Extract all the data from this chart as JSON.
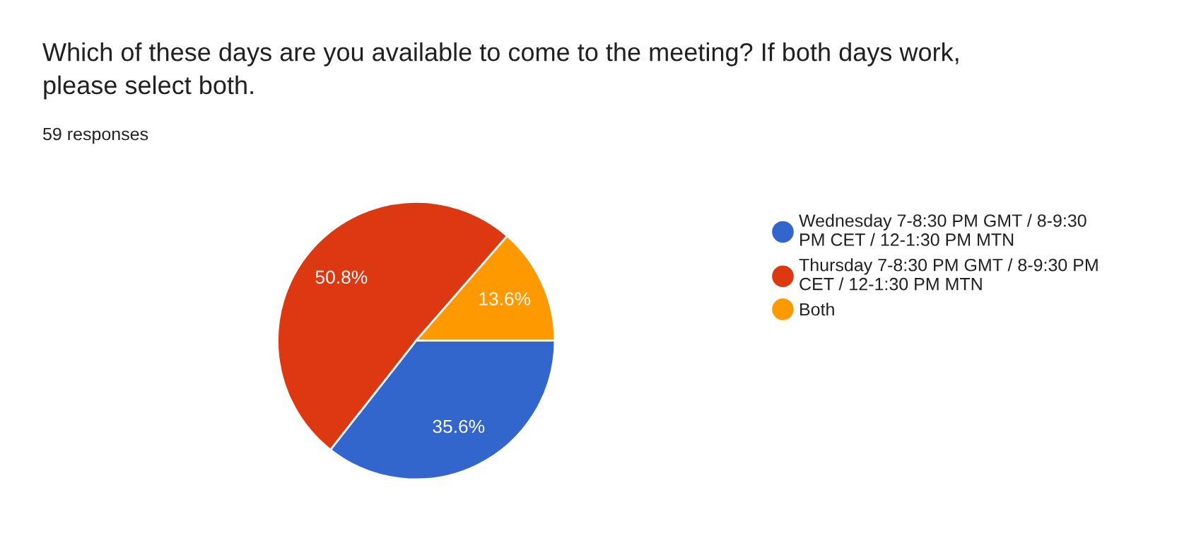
{
  "chart_data": {
    "type": "pie",
    "title": "Which of these days are you available to come to the meeting? If both days work, please select both.",
    "subtitle": "59 responses",
    "categories": [
      "Wednesday 7-8:30 PM GMT / 8-9:30 PM CET / 12-1:30 PM MTN",
      "Thursday 7-8:30 PM GMT / 8-9:30 PM CET / 12-1:30 PM MTN",
      "Both"
    ],
    "values": [
      35.6,
      50.8,
      13.6
    ],
    "colors": [
      "#3366cc",
      "#dc3912",
      "#ff9900"
    ],
    "value_labels": [
      "35.6%",
      "50.8%",
      "13.6%"
    ],
    "legend": "right"
  }
}
